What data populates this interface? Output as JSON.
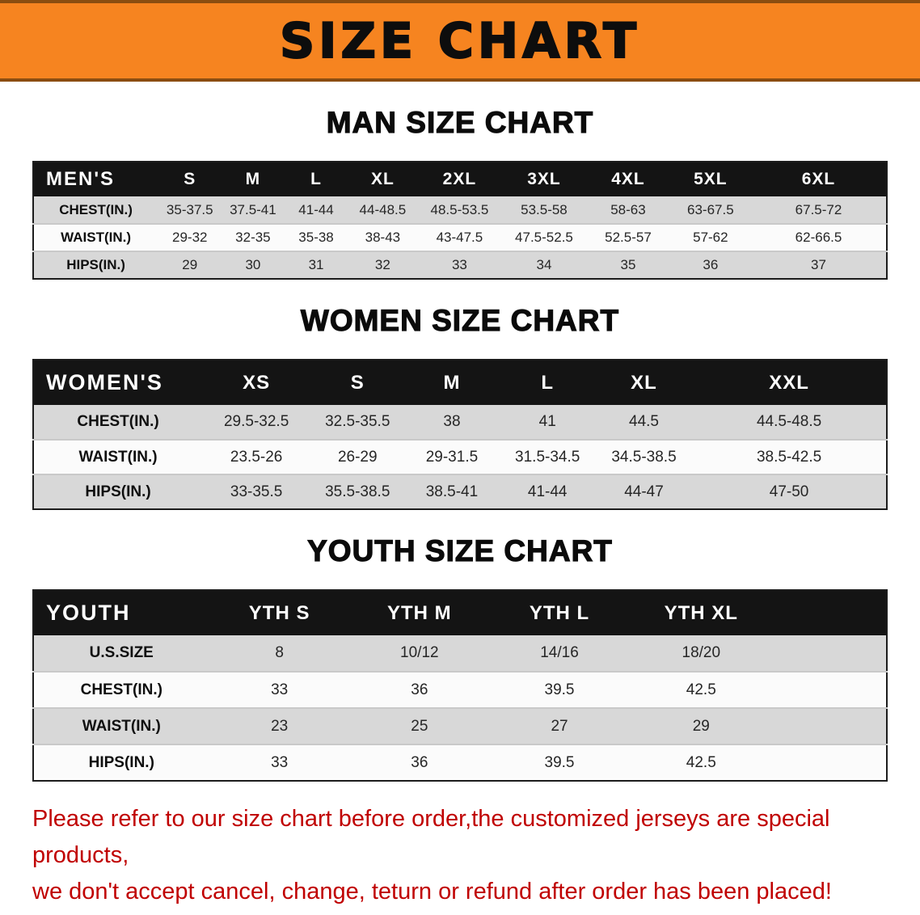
{
  "banner": {
    "title": "SIZE CHART",
    "bg_color": "#f68420",
    "edge_color": "#8a4d10"
  },
  "sections": [
    {
      "id": "men",
      "heading": "MAN SIZE CHART",
      "table": {
        "label": "MEN'S",
        "columns": [
          "S",
          "M",
          "L",
          "XL",
          "2XL",
          "3XL",
          "4XL",
          "5XL",
          "6XL"
        ],
        "rows": [
          {
            "label": "CHEST(IN.)",
            "values": [
              "35-37.5",
              "37.5-41",
              "41-44",
              "44-48.5",
              "48.5-53.5",
              "53.5-58",
              "58-63",
              "63-67.5",
              "67.5-72"
            ]
          },
          {
            "label": "WAIST(IN.)",
            "values": [
              "29-32",
              "32-35",
              "35-38",
              "38-43",
              "43-47.5",
              "47.5-52.5",
              "52.5-57",
              "57-62",
              "62-66.5"
            ]
          },
          {
            "label": "HIPS(IN.)",
            "values": [
              "29",
              "30",
              "31",
              "32",
              "33",
              "34",
              "35",
              "36",
              "37"
            ]
          }
        ]
      }
    },
    {
      "id": "women",
      "heading": "WOMEN SIZE CHART",
      "table": {
        "label": "WOMEN'S",
        "columns": [
          "XS",
          "S",
          "M",
          "L",
          "XL",
          "XXL"
        ],
        "rows": [
          {
            "label": "CHEST(IN.)",
            "values": [
              "29.5-32.5",
              "32.5-35.5",
              "38",
              "41",
              "44.5",
              "44.5-48.5"
            ]
          },
          {
            "label": "WAIST(IN.)",
            "values": [
              "23.5-26",
              "26-29",
              "29-31.5",
              "31.5-34.5",
              "34.5-38.5",
              "38.5-42.5"
            ]
          },
          {
            "label": "HIPS(IN.)",
            "values": [
              "33-35.5",
              "35.5-38.5",
              "38.5-41",
              "41-44",
              "44-47",
              "47-50"
            ]
          }
        ]
      }
    },
    {
      "id": "youth",
      "heading": "YOUTH SIZE CHART",
      "table": {
        "label": "YOUTH",
        "columns": [
          "YTH S",
          "YTH M",
          "YTH L",
          "YTH XL"
        ],
        "rows": [
          {
            "label": "U.S.SIZE",
            "values": [
              "8",
              "10/12",
              "14/16",
              "18/20"
            ]
          },
          {
            "label": "CHEST(IN.)",
            "values": [
              "33",
              "36",
              "39.5",
              "42.5"
            ]
          },
          {
            "label": "WAIST(IN.)",
            "values": [
              "23",
              "25",
              "27",
              "29"
            ]
          },
          {
            "label": "HIPS(IN.)",
            "values": [
              "33",
              "36",
              "39.5",
              "42.5"
            ]
          }
        ]
      }
    }
  ],
  "disclaimer": {
    "line1": "Please refer to our size chart before order,the customized jerseys are special products,",
    "line2": "we don't accept cancel, change, teturn or refund after order has been placed!",
    "text_color": "#c00000"
  }
}
